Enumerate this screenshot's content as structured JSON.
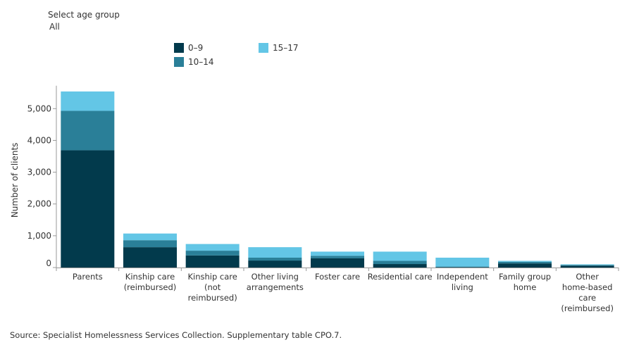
{
  "filter": {
    "label": "Select age group",
    "value": "All"
  },
  "source": "Source: Specialist Homelessness Services Collection. Supplementary table CPO.7.",
  "colors": {
    "age_0_9": "#023a4c",
    "age_10_14": "#2a7f98",
    "age_15_17": "#63c6e6",
    "axis": "#999999",
    "text": "#333333"
  },
  "chart_data": {
    "type": "bar",
    "stacked": true,
    "title": "",
    "xlabel": "",
    "ylabel": "Number of clients",
    "ylim": [
      0,
      5500
    ],
    "yticks": [
      0,
      1000,
      2000,
      3000,
      4000,
      5000
    ],
    "ytick_labels": [
      "0",
      "1,000",
      "2,000",
      "3,000",
      "4,000",
      "5,000"
    ],
    "grid": false,
    "legend_position": "top",
    "categories": [
      [
        "Parents"
      ],
      [
        "Kinship care",
        "(reimbursed)"
      ],
      [
        "Kinship care",
        "(not",
        "reimbursed)"
      ],
      [
        "Other living",
        "arrangements"
      ],
      [
        "Foster care"
      ],
      [
        "Residential care"
      ],
      [
        "Independent",
        "living"
      ],
      [
        "Family group",
        "home"
      ],
      [
        "Other",
        "home-based",
        "care",
        "(reimbursed)"
      ]
    ],
    "series": [
      {
        "name": "0–9",
        "color": "#023a4c",
        "values": [
          3690,
          640,
          380,
          220,
          290,
          110,
          10,
          130,
          60
        ]
      },
      {
        "name": "10–14",
        "color": "#2a7f98",
        "values": [
          1240,
          220,
          150,
          90,
          80,
          100,
          20,
          50,
          20
        ]
      },
      {
        "name": "15–17",
        "color": "#63c6e6",
        "values": [
          610,
          210,
          210,
          330,
          130,
          290,
          280,
          30,
          20
        ]
      }
    ]
  }
}
